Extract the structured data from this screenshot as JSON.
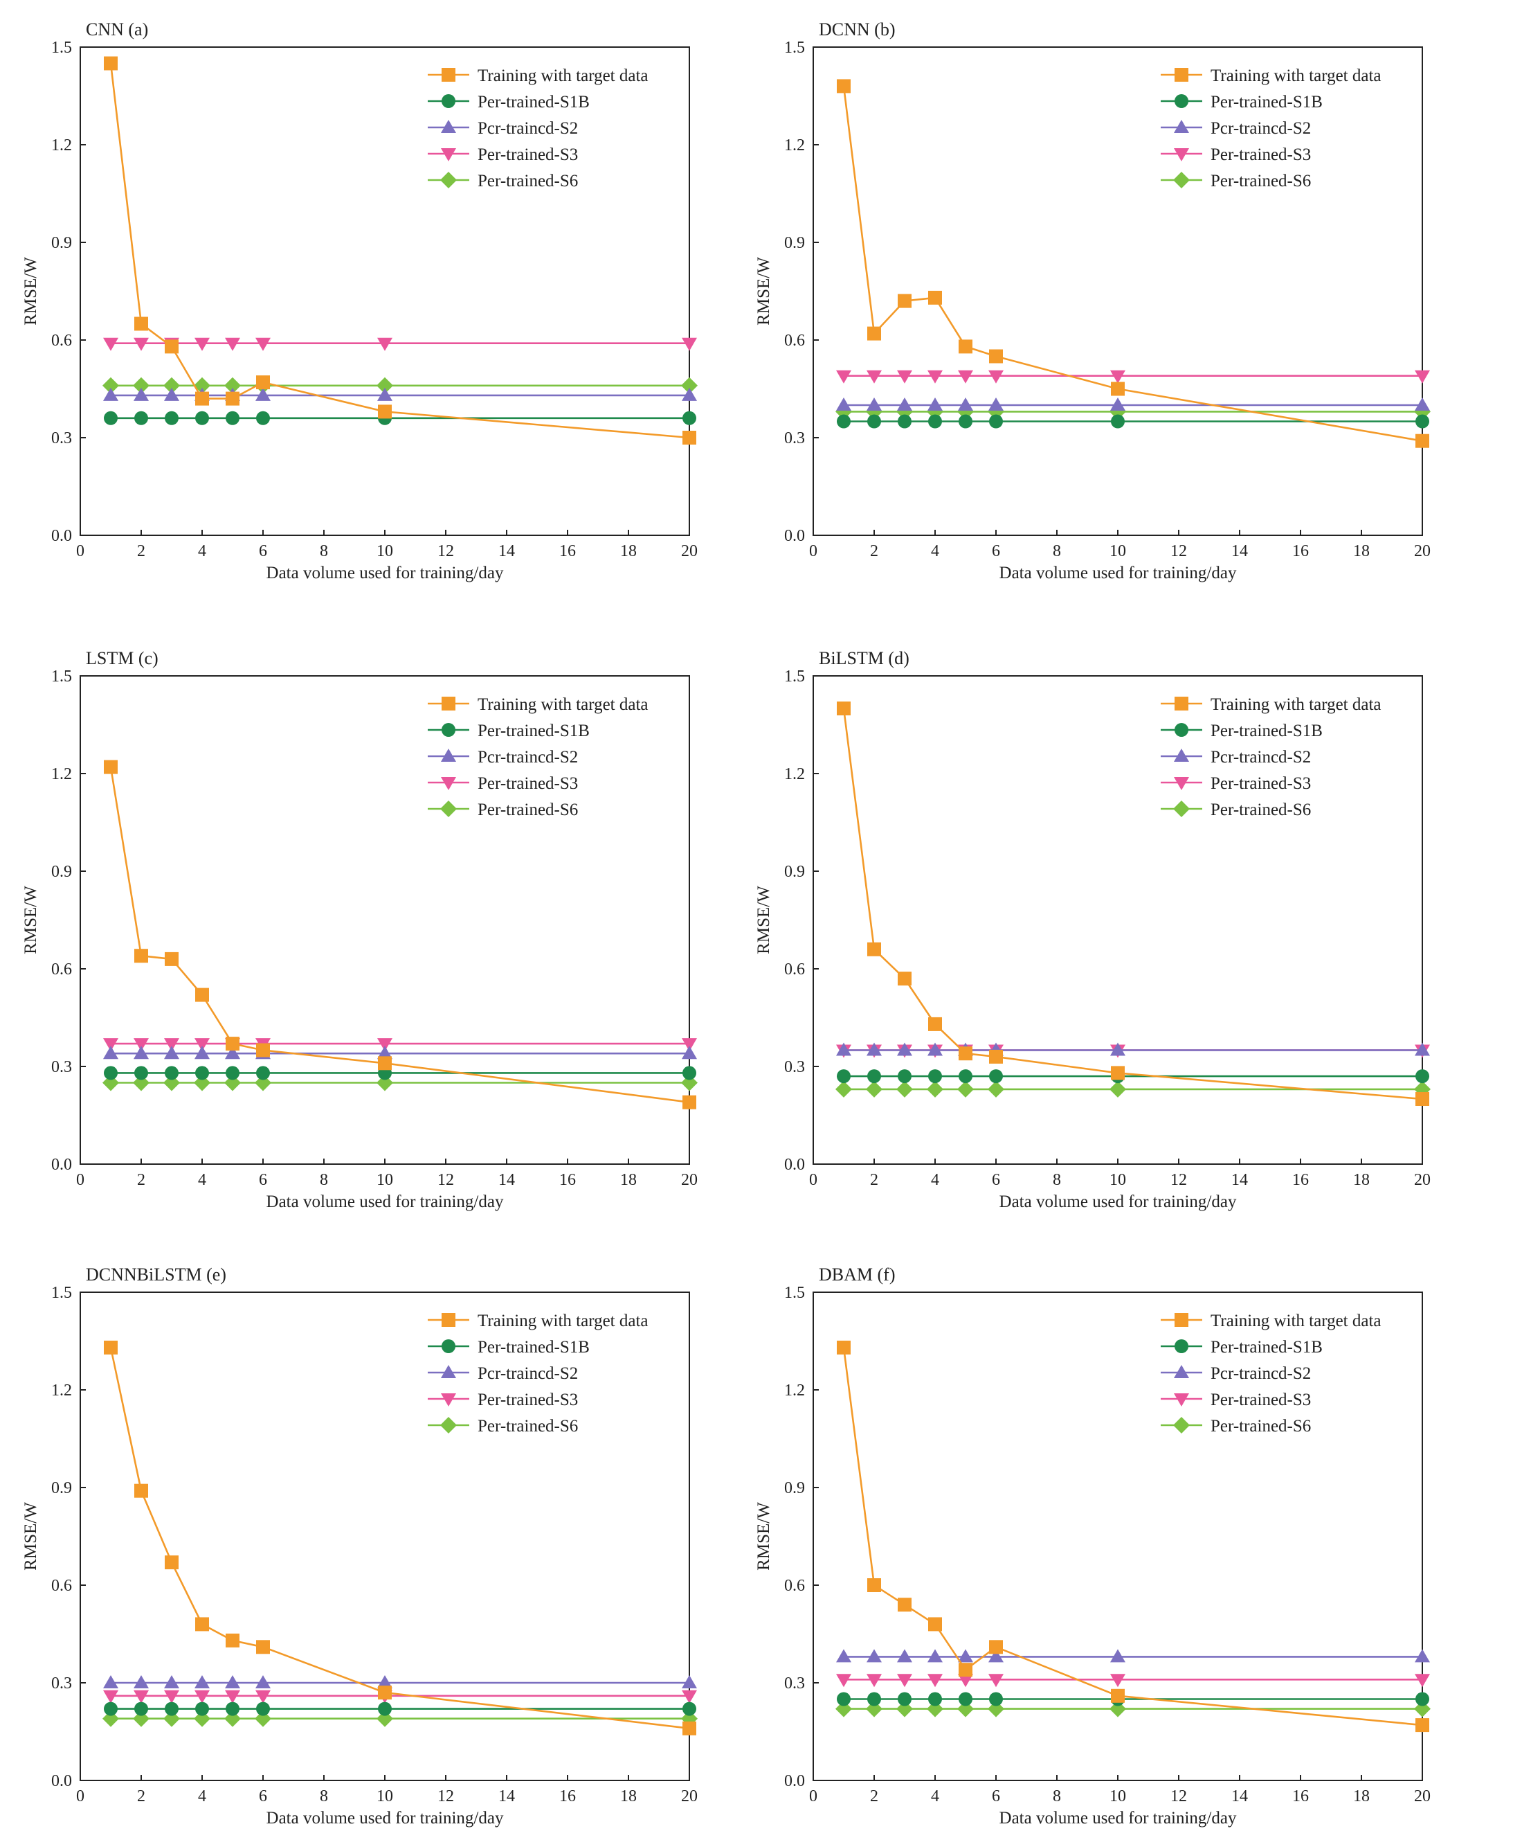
{
  "figure": {
    "x_label": "Data volume used for training/day",
    "y_label": "RMSE/W",
    "x_ticks": [
      "0",
      "2",
      "4",
      "6",
      "8",
      "10",
      "12",
      "14",
      "16",
      "18",
      "20"
    ],
    "y_ticks": [
      "0.0",
      "0.3",
      "0.6",
      "0.9",
      "1.2",
      "1.5"
    ]
  },
  "legend": [
    {
      "name": "Training with target data",
      "color": "#F39A29",
      "marker": "square"
    },
    {
      "name": "Per-trained-S1B",
      "color": "#1E8A4C",
      "marker": "circle"
    },
    {
      "name": "Pcr-traincd-S2",
      "color": "#7B6FC0",
      "marker": "triangle-up"
    },
    {
      "name": "Per-trained-S3",
      "color": "#E9559A",
      "marker": "triangle-down"
    },
    {
      "name": "Per-trained-S6",
      "color": "#7CC242",
      "marker": "diamond"
    }
  ],
  "chart_data": [
    {
      "type": "line",
      "title": "CNN (a)",
      "xlabel": "Data volume used for training/day",
      "ylabel": "RMSE/W",
      "xlim": [
        0,
        20
      ],
      "ylim": [
        0,
        1.5
      ],
      "x": [
        1,
        2,
        3,
        4,
        5,
        6,
        10,
        20
      ],
      "series": [
        {
          "name": "Training with target data",
          "values": [
            1.45,
            0.65,
            0.58,
            0.42,
            0.42,
            0.47,
            0.38,
            0.3
          ]
        },
        {
          "name": "Per-trained-S1B",
          "values": [
            0.36,
            0.36,
            0.36,
            0.36,
            0.36,
            0.36,
            0.36,
            0.36
          ]
        },
        {
          "name": "Pcr-traincd-S2",
          "values": [
            0.43,
            0.43,
            0.43,
            0.43,
            0.43,
            0.43,
            0.43,
            0.43
          ]
        },
        {
          "name": "Per-trained-S3",
          "values": [
            0.59,
            0.59,
            0.59,
            0.59,
            0.59,
            0.59,
            0.59,
            0.59
          ]
        },
        {
          "name": "Per-trained-S6",
          "values": [
            0.46,
            0.46,
            0.46,
            0.46,
            0.46,
            0.46,
            0.46,
            0.46
          ]
        }
      ]
    },
    {
      "type": "line",
      "title": "DCNN (b)",
      "xlabel": "Data volume used for training/day",
      "ylabel": "RMSE/W",
      "xlim": [
        0,
        20
      ],
      "ylim": [
        0,
        1.5
      ],
      "x": [
        1,
        2,
        3,
        4,
        5,
        6,
        10,
        20
      ],
      "series": [
        {
          "name": "Training with target data",
          "values": [
            1.38,
            0.62,
            0.72,
            0.73,
            0.58,
            0.55,
            0.45,
            0.29
          ]
        },
        {
          "name": "Per-trained-S1B",
          "values": [
            0.35,
            0.35,
            0.35,
            0.35,
            0.35,
            0.35,
            0.35,
            0.35
          ]
        },
        {
          "name": "Pcr-traincd-S2",
          "values": [
            0.4,
            0.4,
            0.4,
            0.4,
            0.4,
            0.4,
            0.4,
            0.4
          ]
        },
        {
          "name": "Per-trained-S3",
          "values": [
            0.49,
            0.49,
            0.49,
            0.49,
            0.49,
            0.49,
            0.49,
            0.49
          ]
        },
        {
          "name": "Per-trained-S6",
          "values": [
            0.38,
            0.38,
            0.38,
            0.38,
            0.38,
            0.38,
            0.38,
            0.38
          ]
        }
      ]
    },
    {
      "type": "line",
      "title": "LSTM (c)",
      "xlabel": "Data volume used for training/day",
      "ylabel": "RMSE/W",
      "xlim": [
        0,
        20
      ],
      "ylim": [
        0,
        1.5
      ],
      "x": [
        1,
        2,
        3,
        4,
        5,
        6,
        10,
        20
      ],
      "series": [
        {
          "name": "Training with target data",
          "values": [
            1.22,
            0.64,
            0.63,
            0.52,
            0.37,
            0.35,
            0.31,
            0.19
          ]
        },
        {
          "name": "Per-trained-S1B",
          "values": [
            0.28,
            0.28,
            0.28,
            0.28,
            0.28,
            0.28,
            0.28,
            0.28
          ]
        },
        {
          "name": "Pcr-traincd-S2",
          "values": [
            0.34,
            0.34,
            0.34,
            0.34,
            0.34,
            0.34,
            0.34,
            0.34
          ]
        },
        {
          "name": "Per-trained-S3",
          "values": [
            0.37,
            0.37,
            0.37,
            0.37,
            0.37,
            0.37,
            0.37,
            0.37
          ]
        },
        {
          "name": "Per-trained-S6",
          "values": [
            0.25,
            0.25,
            0.25,
            0.25,
            0.25,
            0.25,
            0.25,
            0.25
          ]
        }
      ]
    },
    {
      "type": "line",
      "title": "BiLSTM (d)",
      "xlabel": "Data volume used for training/day",
      "ylabel": "RMSE/W",
      "xlim": [
        0,
        20
      ],
      "ylim": [
        0,
        1.5
      ],
      "x": [
        1,
        2,
        3,
        4,
        5,
        6,
        10,
        20
      ],
      "series": [
        {
          "name": "Training with target data",
          "values": [
            1.4,
            0.66,
            0.57,
            0.43,
            0.34,
            0.33,
            0.28,
            0.2
          ]
        },
        {
          "name": "Per-trained-S1B",
          "values": [
            0.27,
            0.27,
            0.27,
            0.27,
            0.27,
            0.27,
            0.27,
            0.27
          ]
        },
        {
          "name": "Pcr-traincd-S2",
          "values": [
            0.35,
            0.35,
            0.35,
            0.35,
            0.35,
            0.35,
            0.35,
            0.35
          ]
        },
        {
          "name": "Per-trained-S3",
          "values": [
            0.35,
            0.35,
            0.35,
            0.35,
            0.35,
            0.35,
            0.35,
            0.35
          ]
        },
        {
          "name": "Per-trained-S6",
          "values": [
            0.23,
            0.23,
            0.23,
            0.23,
            0.23,
            0.23,
            0.23,
            0.23
          ]
        }
      ]
    },
    {
      "type": "line",
      "title": "DCNNBiLSTM (e)",
      "xlabel": "Data volume used for training/day",
      "ylabel": "RMSE/W",
      "xlim": [
        0,
        20
      ],
      "ylim": [
        0,
        1.5
      ],
      "x": [
        1,
        2,
        3,
        4,
        5,
        6,
        10,
        20
      ],
      "series": [
        {
          "name": "Training with target data",
          "values": [
            1.33,
            0.89,
            0.67,
            0.48,
            0.43,
            0.41,
            0.27,
            0.16
          ]
        },
        {
          "name": "Per-trained-S1B",
          "values": [
            0.22,
            0.22,
            0.22,
            0.22,
            0.22,
            0.22,
            0.22,
            0.22
          ]
        },
        {
          "name": "Pcr-traincd-S2",
          "values": [
            0.3,
            0.3,
            0.3,
            0.3,
            0.3,
            0.3,
            0.3,
            0.3
          ]
        },
        {
          "name": "Per-trained-S3",
          "values": [
            0.26,
            0.26,
            0.26,
            0.26,
            0.26,
            0.26,
            0.26,
            0.26
          ]
        },
        {
          "name": "Per-trained-S6",
          "values": [
            0.19,
            0.19,
            0.19,
            0.19,
            0.19,
            0.19,
            0.19,
            0.19
          ]
        }
      ]
    },
    {
      "type": "line",
      "title": "DBAM (f)",
      "xlabel": "Data volume used for training/day",
      "ylabel": "RMSE/W",
      "xlim": [
        0,
        20
      ],
      "ylim": [
        0,
        1.5
      ],
      "x": [
        1,
        2,
        3,
        4,
        5,
        6,
        10,
        20
      ],
      "series": [
        {
          "name": "Training with target data",
          "values": [
            1.33,
            0.6,
            0.54,
            0.48,
            0.34,
            0.41,
            0.26,
            0.17
          ]
        },
        {
          "name": "Per-trained-S1B",
          "values": [
            0.25,
            0.25,
            0.25,
            0.25,
            0.25,
            0.25,
            0.25,
            0.25
          ]
        },
        {
          "name": "Pcr-traincd-S2",
          "values": [
            0.38,
            0.38,
            0.38,
            0.38,
            0.38,
            0.38,
            0.38,
            0.38
          ]
        },
        {
          "name": "Per-trained-S3",
          "values": [
            0.31,
            0.31,
            0.31,
            0.31,
            0.31,
            0.31,
            0.31,
            0.31
          ]
        },
        {
          "name": "Per-trained-S6",
          "values": [
            0.22,
            0.22,
            0.22,
            0.22,
            0.22,
            0.22,
            0.22,
            0.22
          ]
        }
      ]
    }
  ]
}
